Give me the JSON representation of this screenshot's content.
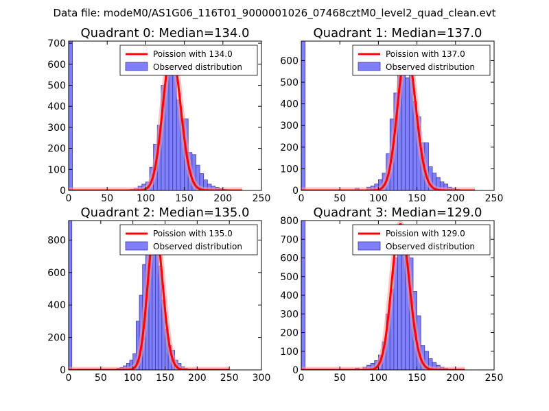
{
  "suptitle": "Data file: modeM0/AS1G06_116T01_9000001026_07468cztM0_level2_quad_clean.evt",
  "colors": {
    "bar_fill": "#8080ff",
    "bar_edge": "#3b3b9a",
    "poisson_line": "#ff0000",
    "poisson_halo": "#ff9999",
    "axes": "#000000"
  },
  "chart_data": [
    {
      "type": "bar",
      "quadrant": 0,
      "median": 134.0,
      "title": "Quadrant 0: Median=134.0",
      "xlim": [
        0,
        250
      ],
      "ylim": [
        0,
        710
      ],
      "xticks": [
        0,
        50,
        100,
        150,
        200,
        250
      ],
      "yticks": [
        0,
        100,
        200,
        300,
        400,
        500,
        600,
        700
      ],
      "legend": [
        "Poission with 134.0",
        "Observed distribution"
      ],
      "legend_position": "top-right",
      "bin_width": 5,
      "bins": [
        {
          "x": 0,
          "count": 710
        },
        {
          "x": 80,
          "count": 5
        },
        {
          "x": 85,
          "count": 10
        },
        {
          "x": 90,
          "count": 20
        },
        {
          "x": 95,
          "count": 30
        },
        {
          "x": 100,
          "count": 40
        },
        {
          "x": 105,
          "count": 110
        },
        {
          "x": 110,
          "count": 220
        },
        {
          "x": 115,
          "count": 310
        },
        {
          "x": 120,
          "count": 500
        },
        {
          "x": 125,
          "count": 550
        },
        {
          "x": 130,
          "count": 610
        },
        {
          "x": 135,
          "count": 550
        },
        {
          "x": 140,
          "count": 430
        },
        {
          "x": 145,
          "count": 340
        },
        {
          "x": 150,
          "count": 340
        },
        {
          "x": 155,
          "count": 180
        },
        {
          "x": 160,
          "count": 170
        },
        {
          "x": 165,
          "count": 120
        },
        {
          "x": 170,
          "count": 80
        },
        {
          "x": 175,
          "count": 50
        },
        {
          "x": 180,
          "count": 30
        },
        {
          "x": 185,
          "count": 20
        },
        {
          "x": 190,
          "count": 15
        },
        {
          "x": 195,
          "count": 8
        },
        {
          "x": 200,
          "count": 5
        },
        {
          "x": 205,
          "count": 3
        }
      ],
      "poisson_range": [
        0,
        225
      ],
      "poisson_peak": 660
    },
    {
      "type": "bar",
      "quadrant": 1,
      "median": 137.0,
      "title": "Quadrant 1: Median=137.0",
      "xlim": [
        0,
        250
      ],
      "ylim": [
        0,
        690
      ],
      "xticks": [
        0,
        50,
        100,
        150,
        200,
        250
      ],
      "yticks": [
        0,
        100,
        200,
        300,
        400,
        500,
        600
      ],
      "legend": [
        "Poission with 137.0",
        "Observed distribution"
      ],
      "legend_position": "top-right",
      "bin_width": 5,
      "bins": [
        {
          "x": 0,
          "count": 690
        },
        {
          "x": 70,
          "count": 10
        },
        {
          "x": 85,
          "count": 15
        },
        {
          "x": 90,
          "count": 20
        },
        {
          "x": 95,
          "count": 30
        },
        {
          "x": 100,
          "count": 50
        },
        {
          "x": 105,
          "count": 80
        },
        {
          "x": 110,
          "count": 170
        },
        {
          "x": 115,
          "count": 330
        },
        {
          "x": 120,
          "count": 450
        },
        {
          "x": 125,
          "count": 540
        },
        {
          "x": 130,
          "count": 610
        },
        {
          "x": 135,
          "count": 520
        },
        {
          "x": 140,
          "count": 560
        },
        {
          "x": 145,
          "count": 410
        },
        {
          "x": 150,
          "count": 340
        },
        {
          "x": 155,
          "count": 220
        },
        {
          "x": 160,
          "count": 220
        },
        {
          "x": 165,
          "count": 110
        },
        {
          "x": 170,
          "count": 80
        },
        {
          "x": 175,
          "count": 60
        },
        {
          "x": 180,
          "count": 40
        },
        {
          "x": 185,
          "count": 30
        },
        {
          "x": 190,
          "count": 15
        },
        {
          "x": 195,
          "count": 10
        },
        {
          "x": 200,
          "count": 5
        }
      ],
      "poisson_range": [
        0,
        225
      ],
      "poisson_peak": 650
    },
    {
      "type": "bar",
      "quadrant": 2,
      "median": 135.0,
      "title": "Quadrant 2: Median=135.0",
      "xlim": [
        0,
        300
      ],
      "ylim": [
        0,
        920
      ],
      "xticks": [
        0,
        50,
        100,
        150,
        200,
        250,
        300
      ],
      "yticks": [
        0,
        200,
        400,
        600,
        800
      ],
      "legend": [
        "Poission with 135.0",
        "Observed distribution"
      ],
      "legend_position": "top-right",
      "bin_width": 5,
      "bins": [
        {
          "x": 0,
          "count": 920
        },
        {
          "x": 75,
          "count": 10
        },
        {
          "x": 80,
          "count": 15
        },
        {
          "x": 85,
          "count": 25
        },
        {
          "x": 90,
          "count": 40
        },
        {
          "x": 95,
          "count": 60
        },
        {
          "x": 100,
          "count": 100
        },
        {
          "x": 105,
          "count": 300
        },
        {
          "x": 110,
          "count": 460
        },
        {
          "x": 115,
          "count": 650
        },
        {
          "x": 120,
          "count": 720
        },
        {
          "x": 125,
          "count": 820
        },
        {
          "x": 130,
          "count": 880
        },
        {
          "x": 135,
          "count": 850
        },
        {
          "x": 140,
          "count": 640
        },
        {
          "x": 145,
          "count": 430
        },
        {
          "x": 150,
          "count": 250
        },
        {
          "x": 155,
          "count": 150
        },
        {
          "x": 160,
          "count": 120
        },
        {
          "x": 165,
          "count": 60
        },
        {
          "x": 170,
          "count": 40
        },
        {
          "x": 175,
          "count": 20
        },
        {
          "x": 180,
          "count": 10
        },
        {
          "x": 185,
          "count": 5
        }
      ],
      "poisson_range": [
        0,
        250
      ],
      "poisson_peak": 880
    },
    {
      "type": "bar",
      "quadrant": 3,
      "median": 129.0,
      "title": "Quadrant 3: Median=129.0",
      "xlim": [
        0,
        250
      ],
      "ylim": [
        0,
        800
      ],
      "xticks": [
        0,
        50,
        100,
        150,
        200,
        250
      ],
      "yticks": [
        0,
        100,
        200,
        300,
        400,
        500,
        600,
        700,
        800
      ],
      "legend": [
        "Poission with 129.0",
        "Observed distribution"
      ],
      "legend_position": "top-right",
      "bin_width": 5,
      "bins": [
        {
          "x": 0,
          "count": 800
        },
        {
          "x": 70,
          "count": 10
        },
        {
          "x": 80,
          "count": 15
        },
        {
          "x": 85,
          "count": 25
        },
        {
          "x": 90,
          "count": 35
        },
        {
          "x": 95,
          "count": 50
        },
        {
          "x": 100,
          "count": 80
        },
        {
          "x": 105,
          "count": 150
        },
        {
          "x": 110,
          "count": 300
        },
        {
          "x": 115,
          "count": 430
        },
        {
          "x": 120,
          "count": 600
        },
        {
          "x": 125,
          "count": 620
        },
        {
          "x": 130,
          "count": 740
        },
        {
          "x": 135,
          "count": 730
        },
        {
          "x": 140,
          "count": 600
        },
        {
          "x": 145,
          "count": 420
        },
        {
          "x": 150,
          "count": 290
        },
        {
          "x": 155,
          "count": 130
        },
        {
          "x": 160,
          "count": 100
        },
        {
          "x": 165,
          "count": 60
        },
        {
          "x": 170,
          "count": 40
        },
        {
          "x": 175,
          "count": 25
        },
        {
          "x": 180,
          "count": 15
        },
        {
          "x": 185,
          "count": 8
        }
      ],
      "poisson_range": [
        0,
        212
      ],
      "poisson_peak": 780
    }
  ]
}
